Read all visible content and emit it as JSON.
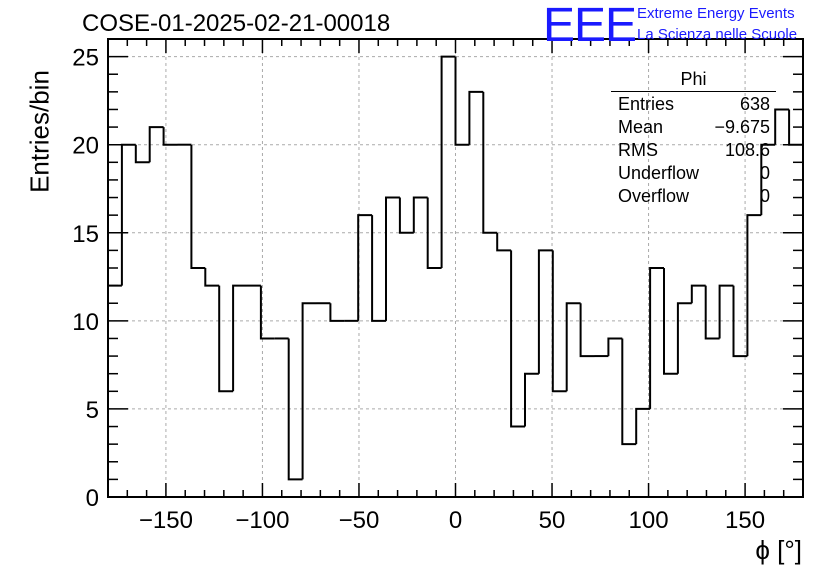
{
  "title": "COSE-01-2025-02-21-00018",
  "logo": {
    "mark": "EEE",
    "line1": "Extreme Energy Events",
    "line2": "La Scienza nelle Scuole",
    "color": "#1a1aff"
  },
  "stats": {
    "name": "Phi",
    "rows": [
      {
        "label": "Entries",
        "value": "638"
      },
      {
        "label": "Mean",
        "value": "−9.675"
      },
      {
        "label": "RMS",
        "value": "108.6"
      },
      {
        "label": "Underflow",
        "value": "0"
      },
      {
        "label": "Overflow",
        "value": "0"
      }
    ]
  },
  "chart_data": {
    "type": "bar",
    "style": "step histogram",
    "xlabel": "ϕ [°]",
    "ylabel": "Entries/bin",
    "xlim": [
      -180,
      180
    ],
    "ylim": [
      0,
      26
    ],
    "bin_width": 7.2,
    "xticks": [
      -150,
      -100,
      -50,
      0,
      50,
      100,
      150
    ],
    "yticks": [
      0,
      5,
      10,
      15,
      20,
      25
    ],
    "grid": true,
    "values": [
      12,
      20,
      19,
      21,
      20,
      20,
      13,
      12,
      6,
      12,
      12,
      9,
      9,
      1,
      11,
      11,
      10,
      10,
      16,
      10,
      17,
      15,
      17,
      13,
      25,
      20,
      23,
      15,
      14,
      4,
      7,
      14,
      6,
      11,
      8,
      8,
      9,
      3,
      5,
      13,
      7,
      11,
      12,
      9,
      12,
      8,
      16,
      20,
      22,
      20
    ]
  }
}
